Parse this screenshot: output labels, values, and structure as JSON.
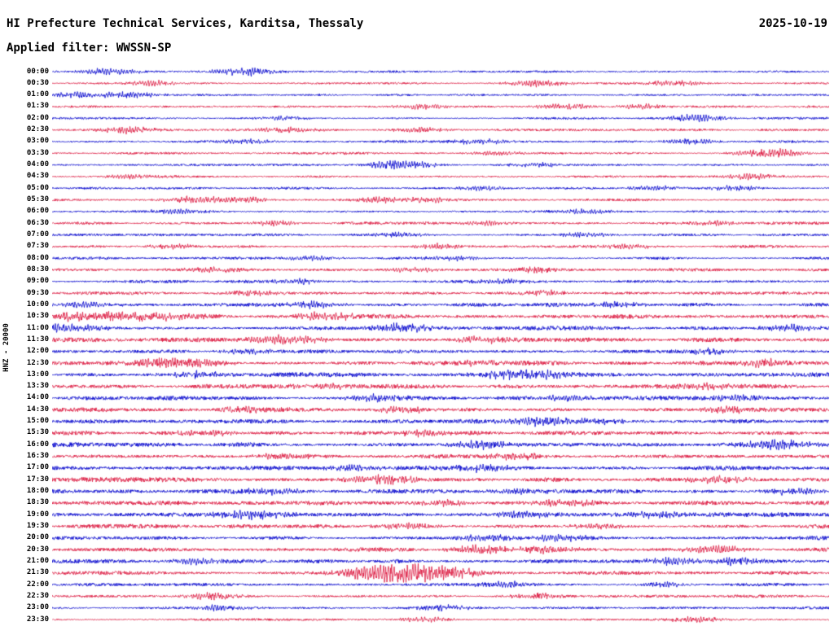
{
  "header": {
    "title": "HI Prefecture Technical Services, Karditsa, Thessaly",
    "date": "2025-10-19",
    "filter": "Applied filter: WWSSN-SP"
  },
  "axis": {
    "left_label": "HNZ - 20000"
  },
  "chart_data": {
    "type": "line",
    "variant": "helicorder-seismogram",
    "title": "HI Prefecture Technical Services, Karditsa, Thessaly",
    "date": "2025-10-19",
    "filter": "WWSSN-SP",
    "ylabel": "HNZ - 20000",
    "row_duration_minutes": 30,
    "rows_count": 48,
    "background": "#ffffff",
    "colors": {
      "blue": "#0000cd",
      "red": "#dc143c"
    },
    "rows": [
      {
        "t": "00:00",
        "c": "blue",
        "a": 0.9,
        "b": [
          [
            0.075,
            3.5
          ],
          [
            0.245,
            4
          ]
        ]
      },
      {
        "t": "00:30",
        "c": "red",
        "a": 0.9,
        "b": [
          [
            0.13,
            2.5
          ],
          [
            0.625,
            3.5
          ],
          [
            0.8,
            3
          ]
        ]
      },
      {
        "t": "01:00",
        "c": "blue",
        "a": 0.9,
        "b": [
          [
            0.035,
            3
          ],
          [
            0.1,
            3.5
          ]
        ]
      },
      {
        "t": "01:30",
        "c": "red",
        "a": 0.9,
        "b": [
          [
            0.475,
            2.5
          ],
          [
            0.66,
            3
          ],
          [
            0.76,
            2.5
          ]
        ]
      },
      {
        "t": "02:00",
        "c": "blue",
        "a": 1.0,
        "b": [
          [
            0.3,
            2
          ],
          [
            0.83,
            3.5
          ]
        ]
      },
      {
        "t": "02:30",
        "c": "red",
        "a": 1.0,
        "b": [
          [
            0.1,
            3.5
          ],
          [
            0.3,
            3
          ],
          [
            0.47,
            2.5
          ]
        ]
      },
      {
        "t": "03:00",
        "c": "blue",
        "a": 1.0,
        "b": [
          [
            0.25,
            2.5
          ],
          [
            0.55,
            2.5
          ],
          [
            0.82,
            3
          ]
        ]
      },
      {
        "t": "03:30",
        "c": "red",
        "a": 1.0,
        "b": [
          [
            0.57,
            2.5
          ],
          [
            0.925,
            4.5
          ]
        ]
      },
      {
        "t": "04:00",
        "c": "blue",
        "a": 1.0,
        "b": [
          [
            0.445,
            4.5
          ],
          [
            0.63,
            2
          ]
        ]
      },
      {
        "t": "04:30",
        "c": "red",
        "a": 1.0,
        "b": [
          [
            0.1,
            2.5
          ],
          [
            0.9,
            3
          ]
        ]
      },
      {
        "t": "05:00",
        "c": "blue",
        "a": 1.1,
        "b": [
          [
            0.55,
            2.5
          ],
          [
            0.77,
            2.5
          ],
          [
            0.88,
            2.5
          ]
        ]
      },
      {
        "t": "05:30",
        "c": "red",
        "a": 1.2,
        "b": [
          [
            0.185,
            3.5
          ],
          [
            0.24,
            3
          ],
          [
            0.425,
            3
          ],
          [
            0.48,
            2.5
          ]
        ]
      },
      {
        "t": "06:00",
        "c": "blue",
        "a": 1.0,
        "b": [
          [
            0.155,
            2.5
          ],
          [
            0.69,
            2.5
          ]
        ]
      },
      {
        "t": "06:30",
        "c": "red",
        "a": 1.2,
        "b": [
          [
            0.285,
            2.5
          ],
          [
            0.56,
            2.5
          ],
          [
            0.85,
            2.5
          ]
        ]
      },
      {
        "t": "07:00",
        "c": "blue",
        "a": 1.1,
        "b": [
          [
            0.45,
            2.5
          ],
          [
            0.685,
            2.5
          ]
        ]
      },
      {
        "t": "07:30",
        "c": "red",
        "a": 1.2,
        "b": [
          [
            0.155,
            2.5
          ],
          [
            0.5,
            2.5
          ],
          [
            0.74,
            2.5
          ]
        ]
      },
      {
        "t": "08:00",
        "c": "blue",
        "a": 1.2,
        "b": [
          [
            0.335,
            2.5
          ],
          [
            0.52,
            2.5
          ]
        ]
      },
      {
        "t": "08:30",
        "c": "red",
        "a": 1.3,
        "b": [
          [
            0.21,
            2.5
          ],
          [
            0.465,
            2.5
          ],
          [
            0.62,
            2.5
          ]
        ]
      },
      {
        "t": "09:00",
        "c": "blue",
        "a": 1.3,
        "b": [
          [
            0.32,
            2.5
          ],
          [
            0.585,
            2.5
          ]
        ]
      },
      {
        "t": "09:30",
        "c": "red",
        "a": 1.3,
        "b": [
          [
            0.26,
            2.5
          ],
          [
            0.635,
            2.5
          ]
        ]
      },
      {
        "t": "10:00",
        "c": "blue",
        "a": 1.6,
        "b": [
          [
            0.045,
            3
          ],
          [
            0.335,
            3
          ],
          [
            0.72,
            2.5
          ]
        ]
      },
      {
        "t": "10:30",
        "c": "red",
        "a": 1.9,
        "b": [
          [
            0.03,
            4
          ],
          [
            0.085,
            4.5
          ],
          [
            0.135,
            4
          ],
          [
            0.35,
            4
          ]
        ]
      },
      {
        "t": "11:00",
        "c": "blue",
        "a": 1.8,
        "b": [
          [
            0.02,
            4
          ],
          [
            0.45,
            3.5
          ],
          [
            0.95,
            3
          ]
        ]
      },
      {
        "t": "11:30",
        "c": "red",
        "a": 1.8,
        "b": [
          [
            0.3,
            5
          ],
          [
            0.55,
            3
          ]
        ]
      },
      {
        "t": "12:00",
        "c": "blue",
        "a": 1.6,
        "b": [
          [
            0.25,
            2.5
          ],
          [
            0.85,
            2.5
          ]
        ]
      },
      {
        "t": "12:30",
        "c": "red",
        "a": 1.9,
        "b": [
          [
            0.145,
            4.5
          ],
          [
            0.185,
            4
          ],
          [
            0.55,
            3
          ],
          [
            0.92,
            3.5
          ]
        ]
      },
      {
        "t": "13:00",
        "c": "blue",
        "a": 1.9,
        "b": [
          [
            0.185,
            3
          ],
          [
            0.585,
            4
          ],
          [
            0.63,
            3.5
          ]
        ]
      },
      {
        "t": "13:30",
        "c": "red",
        "a": 1.8,
        "b": [
          [
            0.35,
            3
          ],
          [
            0.835,
            3.5
          ]
        ]
      },
      {
        "t": "14:00",
        "c": "blue",
        "a": 1.8,
        "b": [
          [
            0.42,
            3
          ],
          [
            0.655,
            3
          ],
          [
            0.88,
            3
          ]
        ]
      },
      {
        "t": "14:30",
        "c": "red",
        "a": 1.8,
        "b": [
          [
            0.25,
            3
          ],
          [
            0.455,
            3
          ],
          [
            0.87,
            3
          ]
        ]
      },
      {
        "t": "15:00",
        "c": "blue",
        "a": 1.9,
        "b": [
          [
            0.625,
            4.5
          ],
          [
            0.7,
            3
          ]
        ]
      },
      {
        "t": "15:30",
        "c": "red",
        "a": 1.8,
        "b": [
          [
            0.2,
            3
          ],
          [
            0.48,
            3
          ]
        ]
      },
      {
        "t": "16:00",
        "c": "blue",
        "a": 2.0,
        "b": [
          [
            0.555,
            3.5
          ],
          [
            0.935,
            5
          ]
        ]
      },
      {
        "t": "16:30",
        "c": "red",
        "a": 1.8,
        "b": [
          [
            0.3,
            3
          ],
          [
            0.6,
            3
          ]
        ]
      },
      {
        "t": "17:00",
        "c": "blue",
        "a": 1.8,
        "b": [
          [
            0.385,
            3
          ],
          [
            0.55,
            3
          ]
        ]
      },
      {
        "t": "17:30",
        "c": "red",
        "a": 2.0,
        "b": [
          [
            0.425,
            4.5
          ],
          [
            0.855,
            3.5
          ]
        ]
      },
      {
        "t": "18:00",
        "c": "blue",
        "a": 1.9,
        "b": [
          [
            0.285,
            3
          ],
          [
            0.6,
            3
          ],
          [
            0.95,
            3.5
          ]
        ]
      },
      {
        "t": "18:30",
        "c": "red",
        "a": 1.9,
        "b": [
          [
            0.5,
            3
          ],
          [
            0.655,
            3.5
          ]
        ]
      },
      {
        "t": "19:00",
        "c": "blue",
        "a": 1.9,
        "b": [
          [
            0.255,
            4
          ],
          [
            0.6,
            3.5
          ],
          [
            0.785,
            3.5
          ]
        ]
      },
      {
        "t": "19:30",
        "c": "red",
        "a": 1.7,
        "b": [
          [
            0.455,
            3
          ],
          [
            0.7,
            3
          ]
        ]
      },
      {
        "t": "20:00",
        "c": "blue",
        "a": 1.7,
        "b": [
          [
            0.555,
            3
          ],
          [
            0.655,
            3
          ]
        ]
      },
      {
        "t": "20:30",
        "c": "red",
        "a": 1.7,
        "b": [
          [
            0.555,
            4
          ],
          [
            0.635,
            3.5
          ],
          [
            0.855,
            4
          ]
        ]
      },
      {
        "t": "21:00",
        "c": "blue",
        "a": 1.6,
        "b": [
          [
            0.185,
            3
          ],
          [
            0.8,
            3.5
          ],
          [
            0.88,
            3.5
          ]
        ]
      },
      {
        "t": "21:30",
        "c": "red",
        "a": 1.6,
        "b": [
          [
            0.455,
            11
          ],
          [
            0.52,
            3.5
          ]
        ]
      },
      {
        "t": "22:00",
        "c": "blue",
        "a": 1.3,
        "b": [
          [
            0.585,
            3
          ],
          [
            0.785,
            2.5
          ]
        ]
      },
      {
        "t": "22:30",
        "c": "red",
        "a": 1.2,
        "b": [
          [
            0.205,
            3.5
          ],
          [
            0.62,
            2.5
          ]
        ]
      },
      {
        "t": "23:00",
        "c": "blue",
        "a": 1.1,
        "b": [
          [
            0.215,
            3
          ],
          [
            0.5,
            2.5
          ]
        ]
      },
      {
        "t": "23:30",
        "c": "red",
        "a": 1.0,
        "b": [
          [
            0.48,
            2.5
          ],
          [
            0.83,
            2.5
          ]
        ]
      }
    ]
  }
}
